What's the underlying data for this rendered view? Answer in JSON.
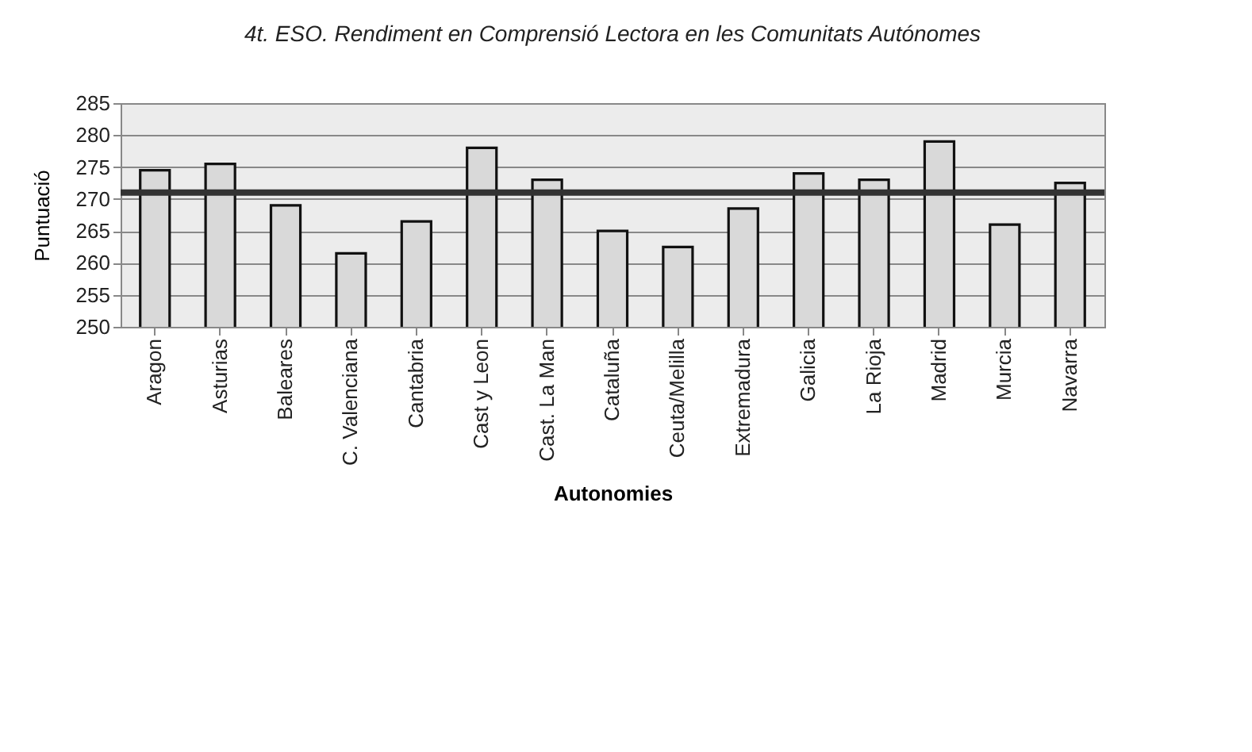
{
  "chart_data": {
    "type": "bar",
    "title": "4t. ESO. Rendiment en Comprensió Lectora en les Comunitats Autónomes",
    "xlabel": "Autonomies",
    "ylabel": "Puntuació",
    "categories": [
      "Aragon",
      "Asturias",
      "Baleares",
      "C. Valenciana",
      "Cantabria",
      "Cast y Leon",
      "Cast. La Man",
      "Cataluña",
      "Ceuta/Melilla",
      "Extremadura",
      "Galicia",
      "La Rioja",
      "Madrid",
      "Murcia",
      "Navarra"
    ],
    "values": [
      274.5,
      275.5,
      269,
      261.5,
      266.5,
      278,
      273,
      265,
      262.5,
      268.5,
      274,
      273,
      279,
      266,
      272.5
    ],
    "color": "#d9d9d9",
    "ylim": [
      250,
      285
    ],
    "yticks": [
      250,
      255,
      260,
      265,
      270,
      275,
      280,
      285
    ],
    "grid": "y",
    "ref_lines": [
      {
        "axis": "y",
        "value": 271,
        "color": "#333333"
      }
    ]
  }
}
